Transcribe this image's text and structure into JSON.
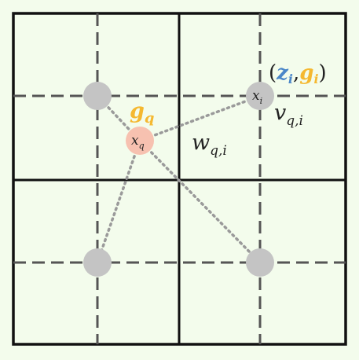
{
  "labels": {
    "query_point": "x",
    "query_point_sub": "q",
    "query_feature": "g",
    "query_feature_sub": "q",
    "neighbor_point": "x",
    "neighbor_point_sub": "i",
    "neighbor_attr_open": "(",
    "neighbor_attr_z": "z",
    "neighbor_attr_z_sub": "i",
    "neighbor_attr_comma": ",",
    "neighbor_attr_g": "g",
    "neighbor_attr_g_sub": "i",
    "neighbor_attr_close": ")",
    "weight": "w",
    "weight_sub": "q,i",
    "value": "v",
    "value_sub": "q,i"
  },
  "colors": {
    "background": "#f3fcec",
    "grid_solid": "#111111",
    "grid_dashed": "#555555",
    "node_gray": "#c4c4c4",
    "node_query": "#f7c1b0",
    "link_dotted": "#9a9a9a",
    "accent_orange": "#f5b830",
    "accent_blue": "#4a86c8",
    "text_dark": "#222222"
  }
}
